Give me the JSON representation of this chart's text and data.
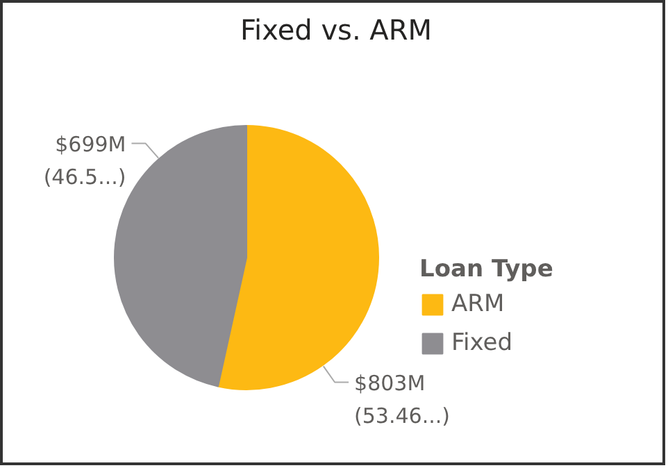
{
  "chart_data": {
    "type": "pie",
    "title": "Fixed vs. ARM",
    "legend_title": "Loan Type",
    "legend": "right",
    "categories": [
      "ARM",
      "Fixed"
    ],
    "values": [
      53.46,
      46.54
    ],
    "colors": [
      "#fdb913",
      "#8e8d91"
    ],
    "value_labels": [
      "$803M\n(53.46...)",
      "$699M\n(46.5...)"
    ]
  }
}
